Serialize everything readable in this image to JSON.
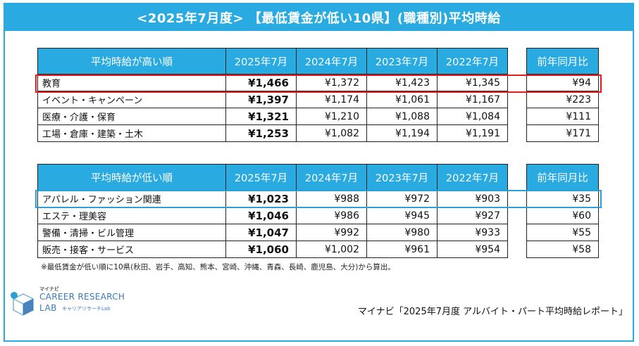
{
  "title": "<2025年7月度> 【最低賃金が低い10県】(職種別)平均時給",
  "high_table": {
    "header": "平均時給が高い順",
    "columns": [
      "2025年7月",
      "2024年7月",
      "2023年7月",
      "2022年7月"
    ],
    "side_header": "前年同月比",
    "rows": [
      {
        "category": "教育",
        "v2025": "¥1,466",
        "v2024": "¥1,372",
        "v2023": "¥1,423",
        "v2022": "¥1,345",
        "yoy": "¥94"
      },
      {
        "category": "イベント・キャンペーン",
        "v2025": "¥1,397",
        "v2024": "¥1,174",
        "v2023": "¥1,061",
        "v2022": "¥1,167",
        "yoy": "¥223"
      },
      {
        "category": "医療・介護・保育",
        "v2025": "¥1,321",
        "v2024": "¥1,210",
        "v2023": "¥1,088",
        "v2022": "¥1,084",
        "yoy": "¥111"
      },
      {
        "category": "工場・倉庫・建築・土木",
        "v2025": "¥1,253",
        "v2024": "¥1,082",
        "v2023": "¥1,194",
        "v2022": "¥1,191",
        "yoy": "¥171"
      }
    ]
  },
  "low_table": {
    "header": "平均時給が低い順",
    "columns": [
      "2025年7月",
      "2024年7月",
      "2023年7月",
      "2022年7月"
    ],
    "side_header": "前年同月比",
    "rows": [
      {
        "category": "アパレル・ファッション関連",
        "v2025": "¥1,023",
        "v2024": "¥988",
        "v2023": "¥972",
        "v2022": "¥903",
        "yoy": "¥35"
      },
      {
        "category": "エステ・理美容",
        "v2025": "¥1,046",
        "v2024": "¥986",
        "v2023": "¥945",
        "v2022": "¥927",
        "yoy": "¥60"
      },
      {
        "category": "警備・清掃・ビル管理",
        "v2025": "¥1,047",
        "v2024": "¥992",
        "v2023": "¥980",
        "v2022": "¥933",
        "yoy": "¥55"
      },
      {
        "category": "販売・接客・サービス",
        "v2025": "¥1,060",
        "v2024": "¥1,002",
        "v2023": "¥961",
        "v2022": "¥954",
        "yoy": "¥58"
      }
    ]
  },
  "note": "※最低賃金が低い順に10県(秋田、岩手、高知、熊本、宮崎、沖縄、青森、長崎、鹿児島、大分)から算出。",
  "logo": {
    "top": "マイナビ",
    "line1": "CAREER RESEARCH",
    "line2": "LAB",
    "sub": "キャリアリサーチLab"
  },
  "source": "マイナビ「2025年7月度 アルバイト・パート平均時給レポート」",
  "colors": {
    "accent": "#29abe2",
    "highlight_red": "#e02020",
    "highlight_blue": "#2b9fd6"
  }
}
